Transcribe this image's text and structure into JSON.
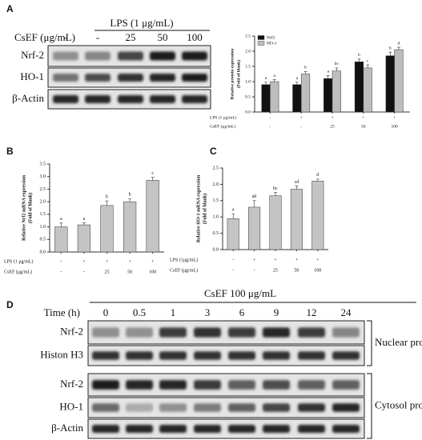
{
  "panel_labels": [
    "A",
    "B",
    "C",
    "D"
  ],
  "blot_a": {
    "lps_label": "LPS (1 μg/mL)",
    "csef_label": "CsEF (μg/mL)",
    "lanes": [
      "-",
      "-",
      "25",
      "50",
      "100"
    ],
    "rows": [
      "Nrf-2",
      "HO-1",
      "β-Actin"
    ]
  },
  "blot_d": {
    "title": "CsEF 100 μg/mL",
    "time_label": "Time (h)",
    "lanes": [
      "0",
      "0.5",
      "1",
      "3",
      "6",
      "9",
      "12",
      "24"
    ],
    "rows": [
      "Nrf-2",
      "Histon H3",
      "Nrf-2",
      "HO-1",
      "β-Actin"
    ],
    "groups": [
      "Nuclear protein",
      "Cytosol protein"
    ]
  },
  "chart_data": [
    {
      "type": "bar",
      "ylabel": [
        "Relative protein expression",
        "(Fold of blank)"
      ],
      "ylim": [
        0,
        2.5
      ],
      "yticks": [
        {
          "value": 0,
          "label": "0.0"
        },
        0.5,
        {
          "value": 1,
          "label": "1.0"
        },
        1.5,
        {
          "value": 2,
          "label": "2.0"
        },
        2.5
      ],
      "series": [
        {
          "name": "Nrf2",
          "color": "#111111",
          "values": [
            0.9,
            0.9,
            1.1,
            1.65,
            1.85
          ],
          "errors": [
            0.08,
            0.08,
            0.1,
            0.1,
            0.12
          ],
          "letters": [
            "a",
            "a",
            "a",
            "b",
            "b"
          ]
        },
        {
          "name": "HO-1",
          "color": "#bdbdbd",
          "values": [
            1.0,
            1.25,
            1.35,
            1.45,
            2.05
          ],
          "errors": [
            0.06,
            0.08,
            0.1,
            0.1,
            0.08
          ],
          "letters": [
            "a",
            "b",
            "bc",
            "c",
            "d"
          ]
        }
      ],
      "conditions": [
        {
          "name": "LPS (1 μg/mL)",
          "values": [
            "-",
            "+",
            "+",
            "+",
            "+"
          ]
        },
        {
          "name": "CsEF (μg/mL)",
          "values": [
            "-",
            "-",
            "25",
            "50",
            "100"
          ]
        }
      ],
      "legend": "upper left"
    },
    {
      "type": "bar",
      "ylabel": [
        "Relative Nrf2 mRNA expression",
        "(Fold of blank)"
      ],
      "ylim": [
        0,
        3.5
      ],
      "yticks": [
        {
          "value": 0,
          "label": "0.0"
        },
        0.5,
        {
          "value": 1,
          "label": "1.0"
        },
        1.5,
        {
          "value": 2,
          "label": "2.0"
        },
        2.5,
        {
          "value": 3,
          "label": "3.0"
        },
        3.5
      ],
      "series": [
        {
          "color": "#c4c4c4",
          "values": [
            1.0,
            1.08,
            1.85,
            2.0,
            2.85
          ],
          "errors": [
            0.15,
            0.08,
            0.18,
            0.12,
            0.12
          ],
          "letters": [
            "a",
            "a",
            "b",
            "b",
            "c"
          ]
        }
      ],
      "conditions": [
        {
          "name": "LPS (1 μg/mL)",
          "values": [
            "-",
            "+",
            "+",
            "+",
            "+"
          ]
        },
        {
          "name": "CsEF (μg/mL)",
          "values": [
            "-",
            "-",
            "25",
            "50",
            "100"
          ]
        }
      ]
    },
    {
      "type": "bar",
      "ylabel": [
        "Relative HO-1 mRNA expression",
        "(Fold of blank)"
      ],
      "ylim": [
        0,
        2.5
      ],
      "yticks": [
        {
          "value": 0,
          "label": "0.0"
        },
        0.5,
        {
          "value": 1,
          "label": "1.0"
        },
        1.5,
        {
          "value": 2,
          "label": "2.0"
        },
        2.5
      ],
      "series": [
        {
          "color": "#c4c4c4",
          "values": [
            0.95,
            1.3,
            1.65,
            1.85,
            2.1
          ],
          "errors": [
            0.15,
            0.2,
            0.1,
            0.1,
            0.06
          ],
          "letters": [
            "a",
            "ab",
            "bc",
            "cd",
            "d"
          ]
        }
      ],
      "conditions": [
        {
          "name": "LPS (1μg/mL)",
          "values": [
            "-",
            "+",
            "+",
            "+",
            "+"
          ]
        },
        {
          "name": "CsEF (μg/mL)",
          "values": [
            "-",
            "-",
            "25",
            "50",
            "100"
          ]
        }
      ]
    }
  ]
}
